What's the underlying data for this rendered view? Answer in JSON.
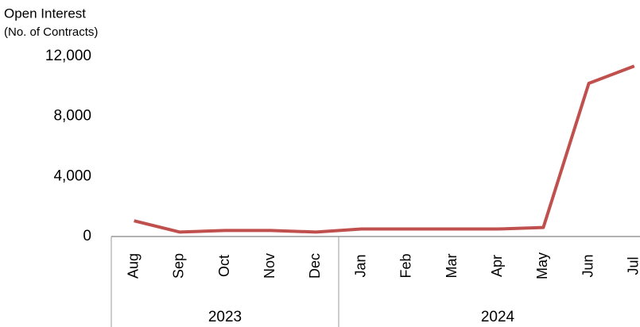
{
  "chart_data": {
    "type": "line",
    "title": "Open Interest",
    "subtitle": "(No. of Contracts)",
    "categories": [
      "Aug",
      "Sep",
      "Oct",
      "Nov",
      "Dec",
      "Jan",
      "Feb",
      "Mar",
      "Apr",
      "May",
      "Jun",
      "Jul"
    ],
    "x_groups": [
      {
        "label": "2023",
        "count": 5
      },
      {
        "label": "2024",
        "count": 7
      }
    ],
    "series": [
      {
        "name": "Open Interest",
        "color": "#c0504d",
        "values": [
          1050,
          300,
          400,
          400,
          300,
          500,
          500,
          500,
          500,
          600,
          10200,
          11350
        ]
      }
    ],
    "ylim": [
      0,
      12000
    ],
    "yticks": [
      0,
      {
        "value": 4000,
        "label": "4,000"
      },
      {
        "value": 8000,
        "label": "8,000"
      },
      {
        "value": 12000,
        "label": "12,000"
      }
    ],
    "grid": false
  }
}
